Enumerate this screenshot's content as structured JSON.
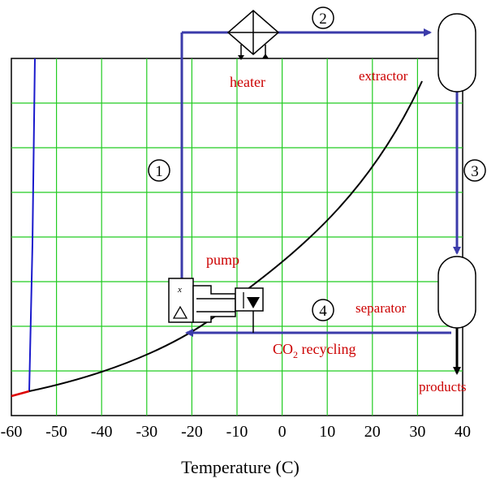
{
  "chart": {
    "x_axis_label": "Temperature (C)",
    "x_ticks": [
      "-60",
      "-50",
      "-40",
      "-30",
      "-20",
      "-10",
      "0",
      "10",
      "20",
      "30",
      "40"
    ],
    "colors": {
      "grid": "#22cc22",
      "curve": "#000000",
      "sublimation_line": "#1a1acc",
      "triple_point": "#dd0000",
      "flow": "#3b3baa",
      "label": "#cc0000"
    }
  },
  "labels": {
    "heater": "heater",
    "extractor": "extractor",
    "pump": "pump",
    "separator": "separator",
    "co2_prefix": "CO",
    "co2_sub": "2",
    "co2_suffix": " recycling",
    "products": "products"
  },
  "steps": {
    "s1": "1",
    "s2": "2",
    "s3": "3",
    "s4": "4"
  },
  "pump_symbol": "x"
}
